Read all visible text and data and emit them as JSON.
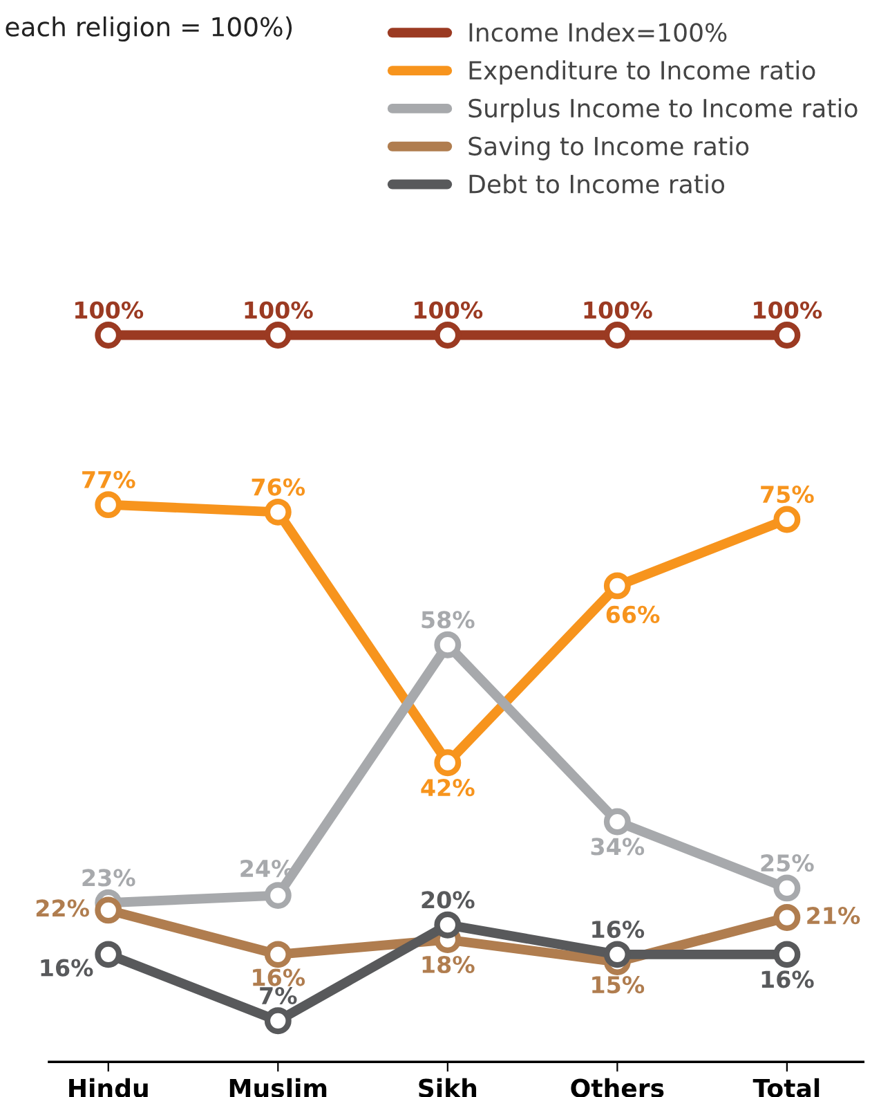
{
  "chart_data": {
    "type": "line",
    "title": "each religion = 100%)",
    "categories": [
      "Hindu",
      "Muslim",
      "Sikh",
      "Others",
      "Total"
    ],
    "series": [
      {
        "name": "Income Index=100%",
        "color": "#9b3a22",
        "values": [
          100,
          100,
          100,
          100,
          100
        ],
        "value_labels": [
          "100%",
          "100%",
          "100%",
          "100%",
          "100%"
        ]
      },
      {
        "name": "Expenditure to Income ratio",
        "color": "#f7941d",
        "values": [
          77,
          76,
          42,
          66,
          75
        ],
        "value_labels": [
          "77%",
          "76%",
          "42%",
          "66%",
          "75%"
        ]
      },
      {
        "name": "Surplus Income to Income ratio",
        "color": "#a7a9ac",
        "values": [
          23,
          24,
          58,
          34,
          25
        ],
        "value_labels": [
          "23%",
          "24%",
          "58%",
          "34%",
          "25%"
        ]
      },
      {
        "name": "Saving to Income ratio",
        "color": "#b07d4f",
        "values": [
          22,
          16,
          18,
          15,
          21
        ],
        "value_labels": [
          "22%",
          "16%",
          "18%",
          "15%",
          "21%"
        ]
      },
      {
        "name": "Debt to Income ratio",
        "color": "#58595b",
        "values": [
          16,
          7,
          20,
          16,
          16
        ],
        "value_labels": [
          "16%",
          "7%",
          "20%",
          "16%",
          "16%"
        ]
      }
    ],
    "legend": "top right",
    "marker": "circle",
    "line_style": "solid",
    "grid": false,
    "tick_labels": "x"
  }
}
